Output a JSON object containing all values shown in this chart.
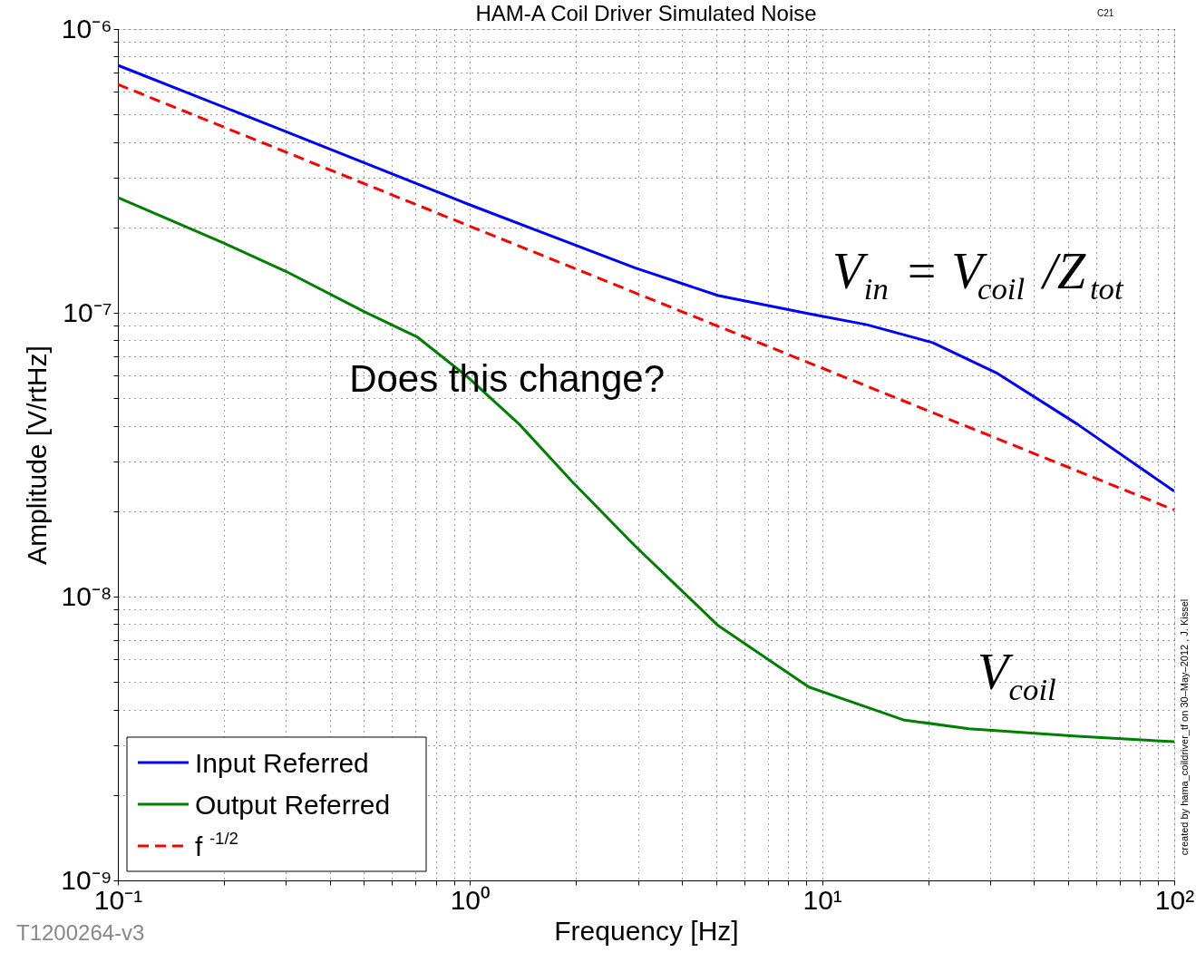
{
  "chart_data": {
    "type": "line",
    "title": "HAM-A Coil Driver Simulated Noise",
    "xlabel": "Frequency [Hz]",
    "ylabel": "Amplitude [V/rtHz]",
    "log": "xy",
    "grid": true,
    "legend": "bottom left",
    "xlim": [
      0.1,
      100
    ],
    "ylim": [
      1e-09,
      1e-06
    ],
    "xticks": [
      {
        "value": 0.1,
        "label": "10⁻¹"
      },
      {
        "value": 0.2,
        "label": null
      },
      {
        "value": 0.3,
        "label": null
      },
      {
        "value": 0.4,
        "label": null
      },
      {
        "value": 0.5,
        "label": null
      },
      {
        "value": 0.6,
        "label": null
      },
      {
        "value": 0.7,
        "label": null
      },
      {
        "value": 0.8,
        "label": null
      },
      {
        "value": 0.9,
        "label": null
      },
      {
        "value": 1,
        "label": "10⁰"
      },
      {
        "value": 2,
        "label": null
      },
      {
        "value": 3,
        "label": null
      },
      {
        "value": 4,
        "label": null
      },
      {
        "value": 5,
        "label": null
      },
      {
        "value": 6,
        "label": null
      },
      {
        "value": 7,
        "label": null
      },
      {
        "value": 8,
        "label": null
      },
      {
        "value": 9,
        "label": null
      },
      {
        "value": 10,
        "label": "10¹"
      },
      {
        "value": 20,
        "label": null
      },
      {
        "value": 30,
        "label": null
      },
      {
        "value": 40,
        "label": null
      },
      {
        "value": 50,
        "label": null
      },
      {
        "value": 60,
        "label": null
      },
      {
        "value": 70,
        "label": null
      },
      {
        "value": 80,
        "label": null
      },
      {
        "value": 90,
        "label": null
      },
      {
        "value": 100,
        "label": "10²"
      }
    ],
    "yticks": [
      {
        "value": 1e-09,
        "label": "10⁻⁹"
      },
      {
        "value": 2e-09,
        "label": null
      },
      {
        "value": 3e-09,
        "label": null
      },
      {
        "value": 4e-09,
        "label": null
      },
      {
        "value": 5e-09,
        "label": null
      },
      {
        "value": 6e-09,
        "label": null
      },
      {
        "value": 7e-09,
        "label": null
      },
      {
        "value": 8e-09,
        "label": null
      },
      {
        "value": 9e-09,
        "label": null
      },
      {
        "value": 1e-08,
        "label": "10⁻⁸"
      },
      {
        "value": 2e-08,
        "label": null
      },
      {
        "value": 3e-08,
        "label": null
      },
      {
        "value": 4e-08,
        "label": null
      },
      {
        "value": 5e-08,
        "label": null
      },
      {
        "value": 6e-08,
        "label": null
      },
      {
        "value": 7e-08,
        "label": null
      },
      {
        "value": 8e-08,
        "label": null
      },
      {
        "value": 9e-08,
        "label": null
      },
      {
        "value": 1e-07,
        "label": "10⁻⁷"
      },
      {
        "value": 2e-07,
        "label": null
      },
      {
        "value": 3e-07,
        "label": null
      },
      {
        "value": 4e-07,
        "label": null
      },
      {
        "value": 5e-07,
        "label": null
      },
      {
        "value": 6e-07,
        "label": null
      },
      {
        "value": 7e-07,
        "label": null
      },
      {
        "value": 8e-07,
        "label": null
      },
      {
        "value": 9e-07,
        "label": null
      },
      {
        "value": 1e-06,
        "label": "10⁻⁶"
      }
    ],
    "series": [
      {
        "name": "Input Referred",
        "color": "#0000ff",
        "line_style": "solid",
        "x": [
          0.1,
          0.3,
          1,
          2.94,
          5.07,
          9.17,
          13.4,
          20.6,
          31.5,
          53.1,
          100
        ],
        "values": [
          7.45e-07,
          4.35e-07,
          2.4e-07,
          1.44e-07,
          1.15e-07,
          9.93e-08,
          9.08e-08,
          7.85e-08,
          6.11e-08,
          4.05e-08,
          2.35e-08
        ]
      },
      {
        "name": "Output Referred",
        "color": "#008000",
        "line_style": "solid",
        "x": [
          0.1,
          0.2,
          0.3,
          0.5,
          0.71,
          0.98,
          1.38,
          1.94,
          2.94,
          5.07,
          9.17,
          17,
          26.1,
          53.1,
          100
        ],
        "values": [
          2.55e-07,
          1.76e-07,
          1.4e-07,
          1.01e-07,
          8.2e-08,
          5.97e-08,
          4.05e-08,
          2.56e-08,
          1.51e-08,
          7.9e-09,
          4.8e-09,
          3.68e-09,
          3.42e-09,
          3.22e-09,
          3.08e-09
        ]
      },
      {
        "name": "f$^{-1/2}$",
        "color": "#ff0000",
        "line_style": "dashed",
        "x": [
          0.1,
          100
        ],
        "values": [
          6.38e-07,
          2.02e-08
        ]
      }
    ],
    "annotations": [
      "Does this change?",
      "V$_{in}$ = V$_{coil}$ /Z$_{tot}$",
      "V$_{coil}$",
      "T1200264-v3",
      "created by hama_coildriver_tf on 30–May–2012 , J. Kissel",
      "C21"
    ]
  }
}
